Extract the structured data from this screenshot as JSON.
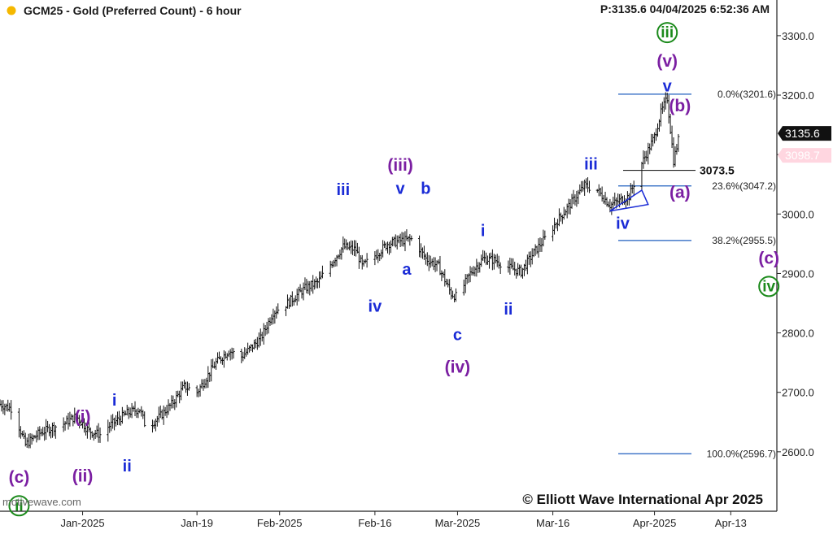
{
  "header": {
    "title": "GCM25 - Gold (Preferred Count) - 6 hour",
    "status": "P:3135.6  04/04/2025 6:52:36 AM",
    "dot_color": "#f5b800"
  },
  "footer": {
    "watermark": "motivewave.com",
    "copyright": "© Elliott Wave International Apr 2025"
  },
  "chart_data": {
    "type": "ohlc",
    "ylim": [
      2500,
      3360
    ],
    "yticks": [
      2600.0,
      2700.0,
      2800.0,
      2900.0,
      3000.0,
      3100.0,
      3200.0,
      3300.0
    ],
    "ytick_labels": [
      "2600.0",
      "2700.0",
      "2800.0",
      "2900.0",
      "3000.0",
      "3100.0",
      "3200.0",
      "3300.0"
    ],
    "x_range": [
      "2024-12-19",
      "2025-04-20"
    ],
    "x_ticks": [
      {
        "date": "2025-01-01",
        "label": "Jan-2025"
      },
      {
        "date": "2025-01-19",
        "label": "Jan-19"
      },
      {
        "date": "2025-02-01",
        "label": "Feb-2025"
      },
      {
        "date": "2025-02-16",
        "label": "Feb-16"
      },
      {
        "date": "2025-03-01",
        "label": "Mar-2025"
      },
      {
        "date": "2025-03-16",
        "label": "Mar-16"
      },
      {
        "date": "2025-04-01",
        "label": "Apr-2025"
      },
      {
        "date": "2025-04-13",
        "label": "Apr-13"
      }
    ],
    "price_path": [
      [
        "2024-12-19",
        2680
      ],
      [
        "2024-12-21",
        2672
      ],
      [
        "2024-12-23",
        2612
      ],
      [
        "2024-12-25",
        2630
      ],
      [
        "2024-12-27",
        2640
      ],
      [
        "2024-12-29",
        2647
      ],
      [
        "2024-12-31",
        2660
      ],
      [
        "2025-01-02",
        2635
      ],
      [
        "2025-01-04",
        2628
      ],
      [
        "2025-01-05",
        2642
      ],
      [
        "2025-01-08",
        2665
      ],
      [
        "2025-01-10",
        2672
      ],
      [
        "2025-01-11",
        2640
      ],
      [
        "2025-01-13",
        2658
      ],
      [
        "2025-01-15",
        2680
      ],
      [
        "2025-01-17",
        2710
      ],
      [
        "2025-01-19",
        2700
      ],
      [
        "2025-01-22",
        2750
      ],
      [
        "2025-01-24",
        2770
      ],
      [
        "2025-01-26",
        2760
      ],
      [
        "2025-01-29",
        2790
      ],
      [
        "2025-01-31",
        2835
      ],
      [
        "2025-02-02",
        2848
      ],
      [
        "2025-02-05",
        2875
      ],
      [
        "2025-02-07",
        2885
      ],
      [
        "2025-02-09",
        2915
      ],
      [
        "2025-02-11",
        2945
      ],
      [
        "2025-02-13",
        2940
      ],
      [
        "2025-02-14",
        2912
      ],
      [
        "2025-02-16",
        2930
      ],
      [
        "2025-02-18",
        2950
      ],
      [
        "2025-02-20",
        2955
      ],
      [
        "2025-02-22",
        2958
      ],
      [
        "2025-02-24",
        2925
      ],
      [
        "2025-02-26",
        2912
      ],
      [
        "2025-02-28",
        2866
      ],
      [
        "2025-03-01",
        2860
      ],
      [
        "2025-03-03",
        2900
      ],
      [
        "2025-03-05",
        2925
      ],
      [
        "2025-03-07",
        2922
      ],
      [
        "2025-03-09",
        2910
      ],
      [
        "2025-03-11",
        2903
      ],
      [
        "2025-03-13",
        2935
      ],
      [
        "2025-03-15",
        2962
      ],
      [
        "2025-03-17",
        2993
      ],
      [
        "2025-03-19",
        3020
      ],
      [
        "2025-03-21",
        3048
      ],
      [
        "2025-03-23",
        3040
      ],
      [
        "2025-03-25",
        3015
      ],
      [
        "2025-03-27",
        3025
      ],
      [
        "2025-03-28",
        3030
      ],
      [
        "2025-03-30",
        3085
      ],
      [
        "2025-04-01",
        3130
      ],
      [
        "2025-04-02",
        3170
      ],
      [
        "2025-04-03",
        3195
      ],
      [
        "2025-04-04",
        3090
      ],
      [
        "2025-04-05",
        3136
      ]
    ],
    "fib_levels": [
      {
        "label": "0.0%(3201.6)",
        "value": 3201.6
      },
      {
        "label": "23.6%(3047.2)",
        "value": 3047.2
      },
      {
        "label": "38.2%(2955.5)",
        "value": 2955.5
      },
      {
        "label": "100.0%(2596.7)",
        "value": 2596.7
      }
    ],
    "fib_color": "#1f5fbf",
    "support_level": {
      "label": "3073.5",
      "value": 3073.5
    },
    "price_markers": [
      {
        "label": "3135.6",
        "value": 3135.6,
        "bg": "#111111",
        "fg": "#ffffff"
      },
      {
        "label": "3098.7",
        "value": 3098.7,
        "bg": "#ffd6e0",
        "fg": "#ffffff"
      }
    ],
    "wave_labels": [
      {
        "text": "(c)",
        "date": "2024-12-22",
        "value": 2548,
        "color": "#7b1fa2",
        "size": 21
      },
      {
        "text": "ii",
        "date": "2024-12-22",
        "value": 2501,
        "color": "#1b8a1b",
        "circle": true,
        "size": 19
      },
      {
        "text": "(i)",
        "date": "2025-01-01",
        "value": 2650,
        "color": "#7b1fa2",
        "size": 21
      },
      {
        "text": "(ii)",
        "date": "2025-01-01",
        "value": 2550,
        "color": "#7b1fa2",
        "size": 21
      },
      {
        "text": "i",
        "date": "2025-01-06",
        "value": 2678,
        "color": "#1a2bd6",
        "size": 20
      },
      {
        "text": "ii",
        "date": "2025-01-08",
        "value": 2567,
        "color": "#1a2bd6",
        "size": 20
      },
      {
        "text": "iii",
        "date": "2025-02-11",
        "value": 3032,
        "color": "#1a2bd6",
        "size": 20
      },
      {
        "text": "iv",
        "date": "2025-02-16",
        "value": 2836,
        "color": "#1a2bd6",
        "size": 20
      },
      {
        "text": "(iii)",
        "date": "2025-02-20",
        "value": 3073,
        "color": "#7b1fa2",
        "size": 21
      },
      {
        "text": "v",
        "date": "2025-02-20",
        "value": 3034,
        "color": "#1a2bd6",
        "size": 20
      },
      {
        "text": "b",
        "date": "2025-02-24",
        "value": 3034,
        "color": "#1a2bd6",
        "size": 20
      },
      {
        "text": "a",
        "date": "2025-02-21",
        "value": 2898,
        "color": "#1a2bd6",
        "size": 20
      },
      {
        "text": "c",
        "date": "2025-03-01",
        "value": 2788,
        "color": "#1a2bd6",
        "size": 20
      },
      {
        "text": "(iv)",
        "date": "2025-03-01",
        "value": 2733,
        "color": "#7b1fa2",
        "size": 21
      },
      {
        "text": "i",
        "date": "2025-03-05",
        "value": 2963,
        "color": "#1a2bd6",
        "size": 20
      },
      {
        "text": "ii",
        "date": "2025-03-09",
        "value": 2831,
        "color": "#1a2bd6",
        "size": 20
      },
      {
        "text": "iii",
        "date": "2025-03-22",
        "value": 3075,
        "color": "#1a2bd6",
        "size": 20
      },
      {
        "text": "iv",
        "date": "2025-03-27",
        "value": 2975,
        "color": "#1a2bd6",
        "size": 20
      },
      {
        "text": "iii",
        "date": "2025-04-03",
        "value": 3297,
        "color": "#1b8a1b",
        "circle": true,
        "size": 19
      },
      {
        "text": "(v)",
        "date": "2025-04-03",
        "value": 3248,
        "color": "#7b1fa2",
        "size": 21
      },
      {
        "text": "v",
        "date": "2025-04-03",
        "value": 3206,
        "color": "#1a2bd6",
        "size": 20
      },
      {
        "text": "(b)",
        "date": "2025-04-05",
        "value": 3173,
        "color": "#7b1fa2",
        "size": 21
      },
      {
        "text": "(a)",
        "date": "2025-04-05",
        "value": 3027,
        "color": "#7b1fa2",
        "size": 21
      },
      {
        "text": "(c)",
        "date": "2025-04-19",
        "value": 2916,
        "color": "#7b1fa2",
        "size": 21
      },
      {
        "text": "iv",
        "date": "2025-04-19",
        "value": 2870,
        "color": "#1b8a1b",
        "circle": true,
        "size": 19
      }
    ]
  }
}
